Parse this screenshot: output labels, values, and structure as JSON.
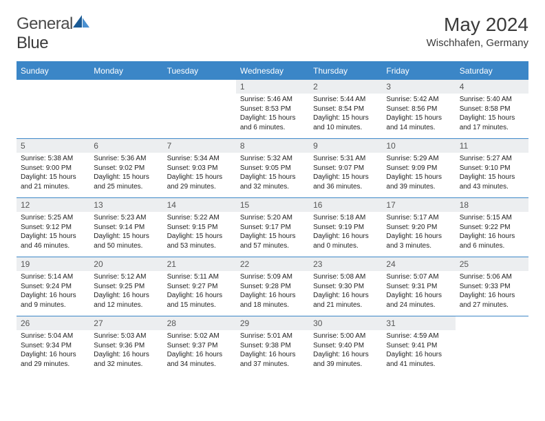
{
  "brand": {
    "name_a": "General",
    "name_b": "Blue"
  },
  "title": "May 2024",
  "location": "Wischhafen, Germany",
  "colors": {
    "header_bg": "#3b86c7",
    "header_text": "#ffffff",
    "daynum_bg": "#eceef0",
    "border": "#3b86c7",
    "logo_sail_dark": "#1a5a94",
    "logo_sail_light": "#4a90d0"
  },
  "weekdays": [
    "Sunday",
    "Monday",
    "Tuesday",
    "Wednesday",
    "Thursday",
    "Friday",
    "Saturday"
  ],
  "first_weekday_index": 3,
  "days": [
    {
      "d": "1",
      "sunrise": "5:46 AM",
      "sunset": "8:53 PM",
      "daylight": "15 hours and 6 minutes."
    },
    {
      "d": "2",
      "sunrise": "5:44 AM",
      "sunset": "8:54 PM",
      "daylight": "15 hours and 10 minutes."
    },
    {
      "d": "3",
      "sunrise": "5:42 AM",
      "sunset": "8:56 PM",
      "daylight": "15 hours and 14 minutes."
    },
    {
      "d": "4",
      "sunrise": "5:40 AM",
      "sunset": "8:58 PM",
      "daylight": "15 hours and 17 minutes."
    },
    {
      "d": "5",
      "sunrise": "5:38 AM",
      "sunset": "9:00 PM",
      "daylight": "15 hours and 21 minutes."
    },
    {
      "d": "6",
      "sunrise": "5:36 AM",
      "sunset": "9:02 PM",
      "daylight": "15 hours and 25 minutes."
    },
    {
      "d": "7",
      "sunrise": "5:34 AM",
      "sunset": "9:03 PM",
      "daylight": "15 hours and 29 minutes."
    },
    {
      "d": "8",
      "sunrise": "5:32 AM",
      "sunset": "9:05 PM",
      "daylight": "15 hours and 32 minutes."
    },
    {
      "d": "9",
      "sunrise": "5:31 AM",
      "sunset": "9:07 PM",
      "daylight": "15 hours and 36 minutes."
    },
    {
      "d": "10",
      "sunrise": "5:29 AM",
      "sunset": "9:09 PM",
      "daylight": "15 hours and 39 minutes."
    },
    {
      "d": "11",
      "sunrise": "5:27 AM",
      "sunset": "9:10 PM",
      "daylight": "15 hours and 43 minutes."
    },
    {
      "d": "12",
      "sunrise": "5:25 AM",
      "sunset": "9:12 PM",
      "daylight": "15 hours and 46 minutes."
    },
    {
      "d": "13",
      "sunrise": "5:23 AM",
      "sunset": "9:14 PM",
      "daylight": "15 hours and 50 minutes."
    },
    {
      "d": "14",
      "sunrise": "5:22 AM",
      "sunset": "9:15 PM",
      "daylight": "15 hours and 53 minutes."
    },
    {
      "d": "15",
      "sunrise": "5:20 AM",
      "sunset": "9:17 PM",
      "daylight": "15 hours and 57 minutes."
    },
    {
      "d": "16",
      "sunrise": "5:18 AM",
      "sunset": "9:19 PM",
      "daylight": "16 hours and 0 minutes."
    },
    {
      "d": "17",
      "sunrise": "5:17 AM",
      "sunset": "9:20 PM",
      "daylight": "16 hours and 3 minutes."
    },
    {
      "d": "18",
      "sunrise": "5:15 AM",
      "sunset": "9:22 PM",
      "daylight": "16 hours and 6 minutes."
    },
    {
      "d": "19",
      "sunrise": "5:14 AM",
      "sunset": "9:24 PM",
      "daylight": "16 hours and 9 minutes."
    },
    {
      "d": "20",
      "sunrise": "5:12 AM",
      "sunset": "9:25 PM",
      "daylight": "16 hours and 12 minutes."
    },
    {
      "d": "21",
      "sunrise": "5:11 AM",
      "sunset": "9:27 PM",
      "daylight": "16 hours and 15 minutes."
    },
    {
      "d": "22",
      "sunrise": "5:09 AM",
      "sunset": "9:28 PM",
      "daylight": "16 hours and 18 minutes."
    },
    {
      "d": "23",
      "sunrise": "5:08 AM",
      "sunset": "9:30 PM",
      "daylight": "16 hours and 21 minutes."
    },
    {
      "d": "24",
      "sunrise": "5:07 AM",
      "sunset": "9:31 PM",
      "daylight": "16 hours and 24 minutes."
    },
    {
      "d": "25",
      "sunrise": "5:06 AM",
      "sunset": "9:33 PM",
      "daylight": "16 hours and 27 minutes."
    },
    {
      "d": "26",
      "sunrise": "5:04 AM",
      "sunset": "9:34 PM",
      "daylight": "16 hours and 29 minutes."
    },
    {
      "d": "27",
      "sunrise": "5:03 AM",
      "sunset": "9:36 PM",
      "daylight": "16 hours and 32 minutes."
    },
    {
      "d": "28",
      "sunrise": "5:02 AM",
      "sunset": "9:37 PM",
      "daylight": "16 hours and 34 minutes."
    },
    {
      "d": "29",
      "sunrise": "5:01 AM",
      "sunset": "9:38 PM",
      "daylight": "16 hours and 37 minutes."
    },
    {
      "d": "30",
      "sunrise": "5:00 AM",
      "sunset": "9:40 PM",
      "daylight": "16 hours and 39 minutes."
    },
    {
      "d": "31",
      "sunrise": "4:59 AM",
      "sunset": "9:41 PM",
      "daylight": "16 hours and 41 minutes."
    }
  ],
  "labels": {
    "sunrise": "Sunrise:",
    "sunset": "Sunset:",
    "daylight": "Daylight:"
  }
}
